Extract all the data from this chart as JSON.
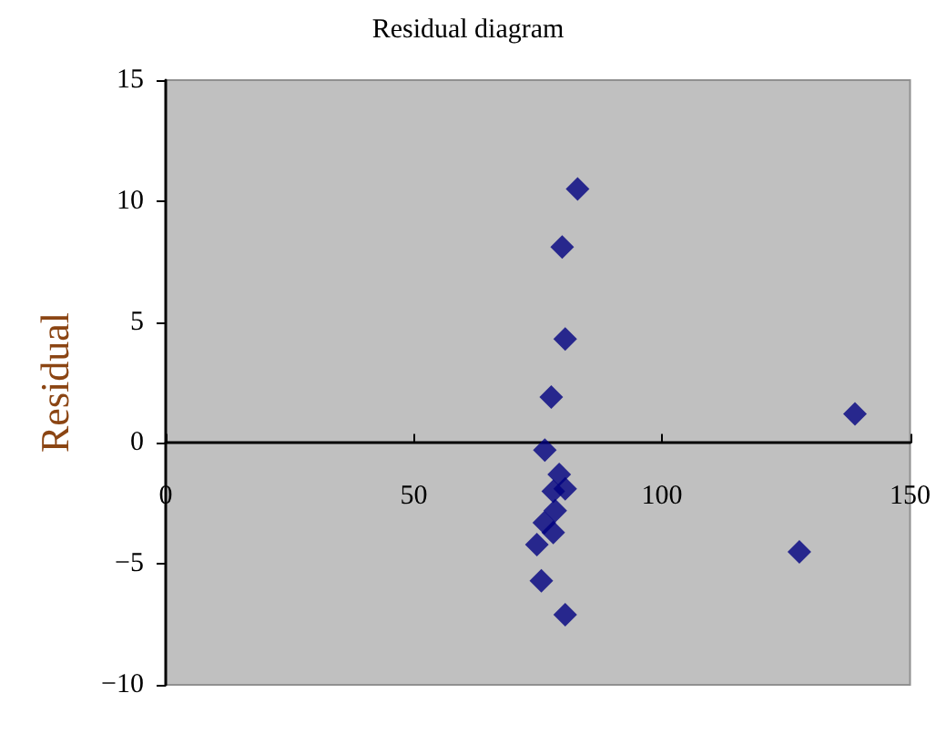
{
  "chart_data": {
    "type": "scatter",
    "title": "Residual diagram",
    "ylabel": "Residual",
    "x": [
      83.0,
      79.9,
      80.5,
      77.7,
      138.9,
      76.4,
      79.3,
      80.5,
      78.1,
      78.5,
      76.3,
      78.1,
      74.8,
      127.7,
      75.7,
      80.5
    ],
    "series": [
      {
        "color": "#000080",
        "values": [
          10.5,
          8.1,
          4.3,
          1.9,
          1.2,
          -0.3,
          -1.3,
          -1.9,
          -2.0,
          -2.8,
          -3.3,
          -3.7,
          -4.2,
          -4.5,
          -5.7,
          -7.1
        ]
      }
    ],
    "xlim": [
      0,
      150
    ],
    "xticks": [
      0,
      50,
      100,
      150
    ],
    "ylim": [
      -10,
      15
    ],
    "yticks": [
      -10,
      -5,
      0,
      5,
      10,
      15
    ],
    "marker": "diamond",
    "grid": false
  }
}
